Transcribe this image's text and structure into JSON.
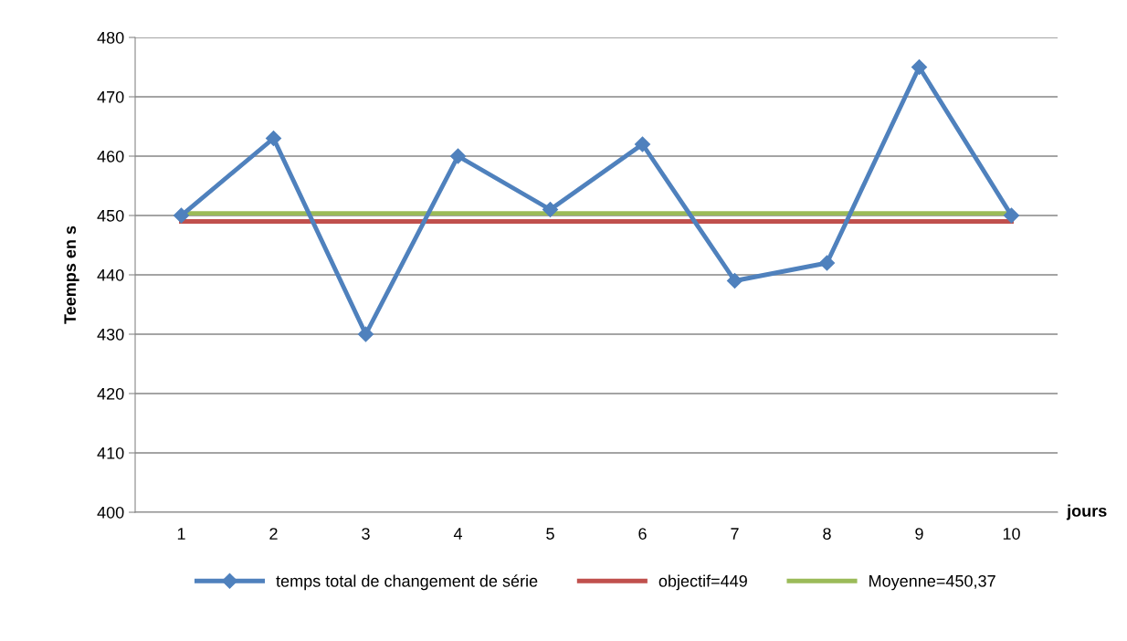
{
  "chart_data": {
    "type": "line",
    "xlabel": "jours",
    "ylabel": "Teemps en s",
    "categories": [
      "1",
      "2",
      "3",
      "4",
      "5",
      "6",
      "7",
      "8",
      "9",
      "10"
    ],
    "series": [
      {
        "name": "temps total de changement de série",
        "color": "#4f81bd",
        "marker": "diamond",
        "values": [
          450,
          463,
          430,
          460,
          451,
          462,
          439,
          442,
          475,
          450
        ]
      },
      {
        "name": "objectif=449",
        "color": "#c0504d",
        "marker": "none",
        "values": [
          449,
          449,
          449,
          449,
          449,
          449,
          449,
          449,
          449,
          449
        ]
      },
      {
        "name": "Moyenne=450,37",
        "color": "#9bbb59",
        "marker": "none",
        "values": [
          450.37,
          450.37,
          450.37,
          450.37,
          450.37,
          450.37,
          450.37,
          450.37,
          450.37,
          450.37
        ]
      }
    ],
    "ylim": [
      400,
      480
    ],
    "yticks": [
      400,
      410,
      420,
      430,
      440,
      450,
      460,
      470,
      480
    ],
    "grid": "y",
    "legend": "bottom",
    "line_style": "solid"
  }
}
